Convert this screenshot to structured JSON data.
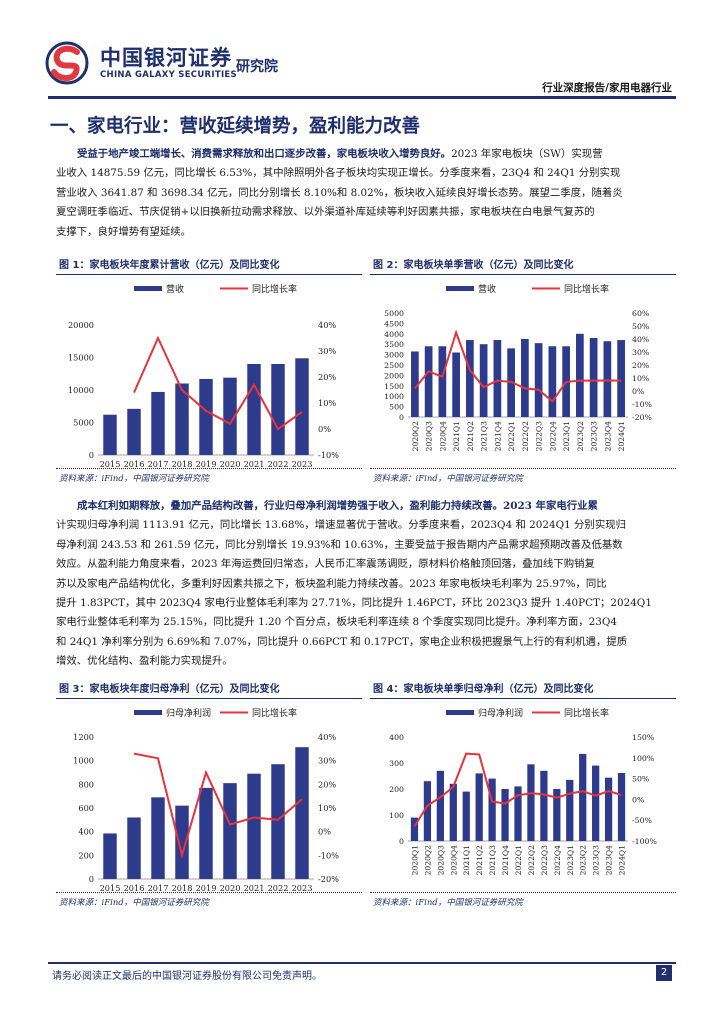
{
  "header": {
    "logo_cn": "中国银河证券",
    "logo_institute": "研究院",
    "logo_en": "CHINA GALAXY SECURITIES",
    "report_type": "行业深度报告/家用电器行业",
    "brand_color": "#1f2f6e",
    "accent_color": "#e03a3e"
  },
  "section": {
    "title": "一、家电行业：营收延续增势，盈利能力改善"
  },
  "para1": {
    "lead": "受益于地产竣工端增长、消费需求释放和出口逐步改善，家电板块收入增势良好。",
    "line1_rest": "2023 年家电板块（SW）实现营",
    "line2": "业收入 14875.59 亿元，同比增长 6.53%，其中除照明外各子板块均实现正增长。分季度来看，23Q4 和 24Q1 分别实现",
    "line3": "营业收入 3641.87 和 3698.34 亿元，同比分别增长 8.10%和 8.02%，板块收入延续良好增长态势。展望二季度，随着炎",
    "line4": "夏空调旺季临近、节庆促销+以旧换新拉动需求释放、以外渠道补库延续等利好因素共振，家电板块在白电景气复苏的",
    "line5": "支撑下，良好增势有望延续。"
  },
  "para2": {
    "line1": "成本红利如期释放，叠加产品结构改善，行业归母净利润增势强于收入，盈利能力持续改善。2023 年家电行业累",
    "line2": "计实现归母净利润 1113.91 亿元，同比增长 13.68%，增速显著优于营收。分季度来看，2023Q4 和 2024Q1 分别实现归",
    "line3": "母净利润 243.53 和 261.59 亿元，同比分别增长 19.93%和 10.63%，主要受益于报告期内产品需求超预期改善及低基数",
    "line4": "效应。从盈利能力角度来看，2023 年海运费回归常态，人民币汇率震荡调贬，原材料价格触顶回落，叠加线下购销复",
    "line5": "苏以及家电产品结构优化，多重利好因素共振之下，板块盈利能力持续改善。2023 年家电板块毛利率为 25.97%，同比",
    "line6": "提升 1.83PCT，其中 2023Q4 家电行业整体毛利率为 27.71%，同比提升 1.46PCT，环比 2023Q3 提升 1.40PCT；2024Q1",
    "line7": "家电行业整体毛利率为 25.15%，同比提升 1.20 个百分点，板块毛利率连续 8 个季度实现同比提升。净利率方面，23Q4",
    "line8": "和 24Q1 净利率分别为 6.69%和 7.07%，同比提升 0.66PCT 和 0.17PCT，家电企业积极把握景气上行的有利机遇，提质",
    "line9": "增效、优化结构、盈利能力实现提升。"
  },
  "figures": {
    "fig1": {
      "title": "图 1：家电板块年度累计营收（亿元）及同比变化",
      "source": "资料来源：iFind，中国银河证券研究院"
    },
    "fig2": {
      "title": "图 2：家电板块单季营收（亿元）及同比变化",
      "source": "资料来源：iFind，中国银河证券研究院"
    },
    "fig3": {
      "title": "图 3：家电板块年度归母净利（亿元）及同比变化",
      "source": "资料来源：iFind，中国银河证券研究院"
    },
    "fig4": {
      "title": "图 4：家电板块单季归母净利（亿元）及同比变化",
      "source": "资料来源：iFind，中国银河证券研究院"
    }
  },
  "chart_data": [
    {
      "id": "fig1",
      "type": "bar",
      "categories": [
        "2015",
        "2016",
        "2017",
        "2018",
        "2019",
        "2020",
        "2021",
        "2022",
        "2023"
      ],
      "series": [
        {
          "name": "营收",
          "kind": "bar",
          "axis": "left",
          "color": "#2e3a8c",
          "values": [
            6200,
            7100,
            9700,
            11000,
            11700,
            11900,
            14000,
            14000,
            14875.59
          ]
        },
        {
          "name": "同比增长率",
          "kind": "line",
          "axis": "right",
          "color": "#e8333a",
          "values": [
            null,
            14,
            35,
            15,
            7,
            2,
            17,
            0,
            6.53
          ]
        }
      ],
      "ylim_left": [
        0,
        20000
      ],
      "yticks_left": [
        0,
        5000,
        10000,
        15000,
        20000
      ],
      "ylim_right": [
        -10,
        40
      ],
      "yticks_right": [
        "-10%",
        "0%",
        "10%",
        "20%",
        "30%",
        "40%"
      ],
      "legend": "top"
    },
    {
      "id": "fig2",
      "type": "bar",
      "categories": [
        "2020Q2",
        "2020Q3",
        "2020Q4",
        "2021Q1",
        "2021Q2",
        "2021Q3",
        "2021Q4",
        "2022Q1",
        "2022Q2",
        "2022Q3",
        "2022Q4",
        "2023Q1",
        "2023Q2",
        "2023Q3",
        "2023Q4",
        "2024Q1"
      ],
      "series": [
        {
          "name": "营收",
          "kind": "bar",
          "axis": "left",
          "color": "#2e3a8c",
          "values": [
            3150,
            3400,
            3400,
            3100,
            3700,
            3500,
            3700,
            3300,
            3750,
            3550,
            3400,
            3400,
            4000,
            3800,
            3641.87,
            3698.34
          ]
        },
        {
          "name": "同比增长率",
          "kind": "line",
          "axis": "right",
          "color": "#e8333a",
          "values": [
            2,
            15,
            11,
            45,
            16,
            3,
            8,
            7,
            2,
            1,
            -8,
            7,
            8,
            8,
            8.1,
            8.02
          ]
        }
      ],
      "ylim_left": [
        0,
        5000
      ],
      "yticks_left": [
        0,
        500,
        1000,
        1500,
        2000,
        2500,
        3000,
        3500,
        4000,
        4500,
        5000
      ],
      "ylim_right": [
        -20,
        60
      ],
      "yticks_right": [
        "-20%",
        "-10%",
        "0%",
        "10%",
        "20%",
        "30%",
        "40%",
        "50%",
        "60%"
      ],
      "legend": "top"
    },
    {
      "id": "fig3",
      "type": "bar",
      "categories": [
        "2015",
        "2016",
        "2017",
        "2018",
        "2019",
        "2020",
        "2021",
        "2022",
        "2023"
      ],
      "series": [
        {
          "name": "归母净利润",
          "kind": "bar",
          "axis": "left",
          "color": "#2e3a8c",
          "values": [
            385,
            520,
            690,
            620,
            770,
            810,
            890,
            970,
            1113.91
          ]
        },
        {
          "name": "同比增长率",
          "kind": "line",
          "axis": "right",
          "color": "#e8333a",
          "values": [
            null,
            33,
            31,
            -10,
            25,
            3,
            6,
            5,
            13.68
          ]
        }
      ],
      "ylim_left": [
        0,
        1200
      ],
      "yticks_left": [
        0,
        200,
        400,
        600,
        800,
        1000,
        1200
      ],
      "ylim_right": [
        -20,
        40
      ],
      "yticks_right": [
        "-20%",
        "-10%",
        "0%",
        "10%",
        "20%",
        "30%",
        "40%"
      ],
      "legend": "top"
    },
    {
      "id": "fig4",
      "type": "bar",
      "categories": [
        "2020Q1",
        "2020Q2",
        "2020Q3",
        "2020Q4",
        "2021Q1",
        "2021Q2",
        "2021Q3",
        "2021Q4",
        "2022Q1",
        "2022Q2",
        "2022Q3",
        "2022Q4",
        "2023Q1",
        "2023Q2",
        "2023Q3",
        "2023Q4",
        "2024Q1"
      ],
      "series": [
        {
          "name": "归母净利润",
          "kind": "bar",
          "axis": "left",
          "color": "#2e3a8c",
          "values": [
            90,
            230,
            270,
            220,
            190,
            260,
            240,
            200,
            210,
            295,
            270,
            200,
            235,
            335,
            290,
            243.53,
            261.59
          ]
        },
        {
          "name": "同比增长率",
          "kind": "line",
          "axis": "right",
          "color": "#e8333a",
          "values": [
            -65,
            -15,
            5,
            30,
            110,
            108,
            -5,
            -10,
            10,
            15,
            12,
            4,
            14,
            20,
            9,
            19.93,
            10.63
          ]
        }
      ],
      "ylim_left": [
        0,
        400
      ],
      "yticks_left": [
        0,
        100,
        200,
        300,
        400
      ],
      "ylim_right": [
        -100,
        150
      ],
      "yticks_right": [
        "-100%",
        "-50%",
        "0%",
        "50%",
        "100%",
        "150%"
      ],
      "legend": "top"
    }
  ],
  "footer": {
    "disclaimer": "请务必阅读正文最后的中国银河证券股份有限公司免责声明。",
    "page_number": "2"
  }
}
